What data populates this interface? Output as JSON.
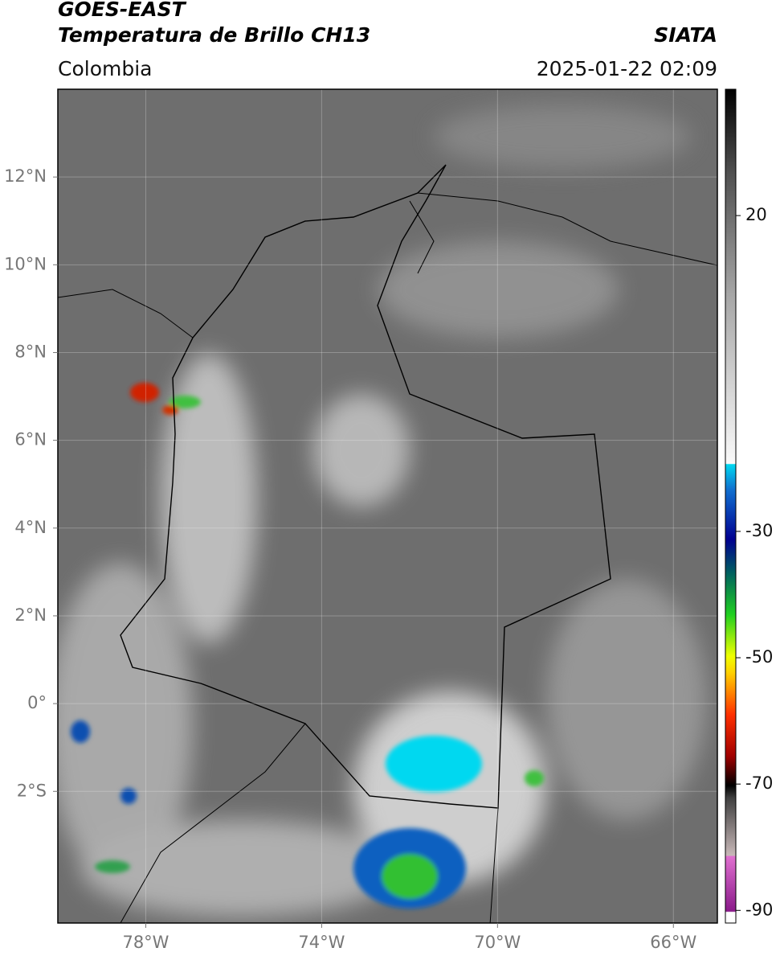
{
  "map": {
    "title": "GOES-EAST",
    "subtitle": "Temperatura de Brillo CH13",
    "source": "SIATA",
    "region": "Colombia",
    "timestamp": "2025-01-22 02:09",
    "xlim": [
      -80,
      -65
    ],
    "ylim": [
      -5,
      14
    ],
    "xticks": [
      {
        "value": -78,
        "label": "78°W"
      },
      {
        "value": -74,
        "label": "74°W"
      },
      {
        "value": -70,
        "label": "70°W"
      },
      {
        "value": -66,
        "label": "66°W"
      }
    ],
    "yticks": [
      {
        "value": 12,
        "label": "12°N"
      },
      {
        "value": 10,
        "label": "10°N"
      },
      {
        "value": 8,
        "label": "8°N"
      },
      {
        "value": 6,
        "label": "6°N"
      },
      {
        "value": 4,
        "label": "4°N"
      },
      {
        "value": 2,
        "label": "2°N"
      },
      {
        "value": 0,
        "label": "0°"
      },
      {
        "value": -2,
        "label": "2°S"
      }
    ],
    "grid": true,
    "colorbar": {
      "lim": [
        -92,
        40
      ],
      "ticks": [
        20,
        -30,
        -50,
        -70,
        -90
      ]
    }
  }
}
